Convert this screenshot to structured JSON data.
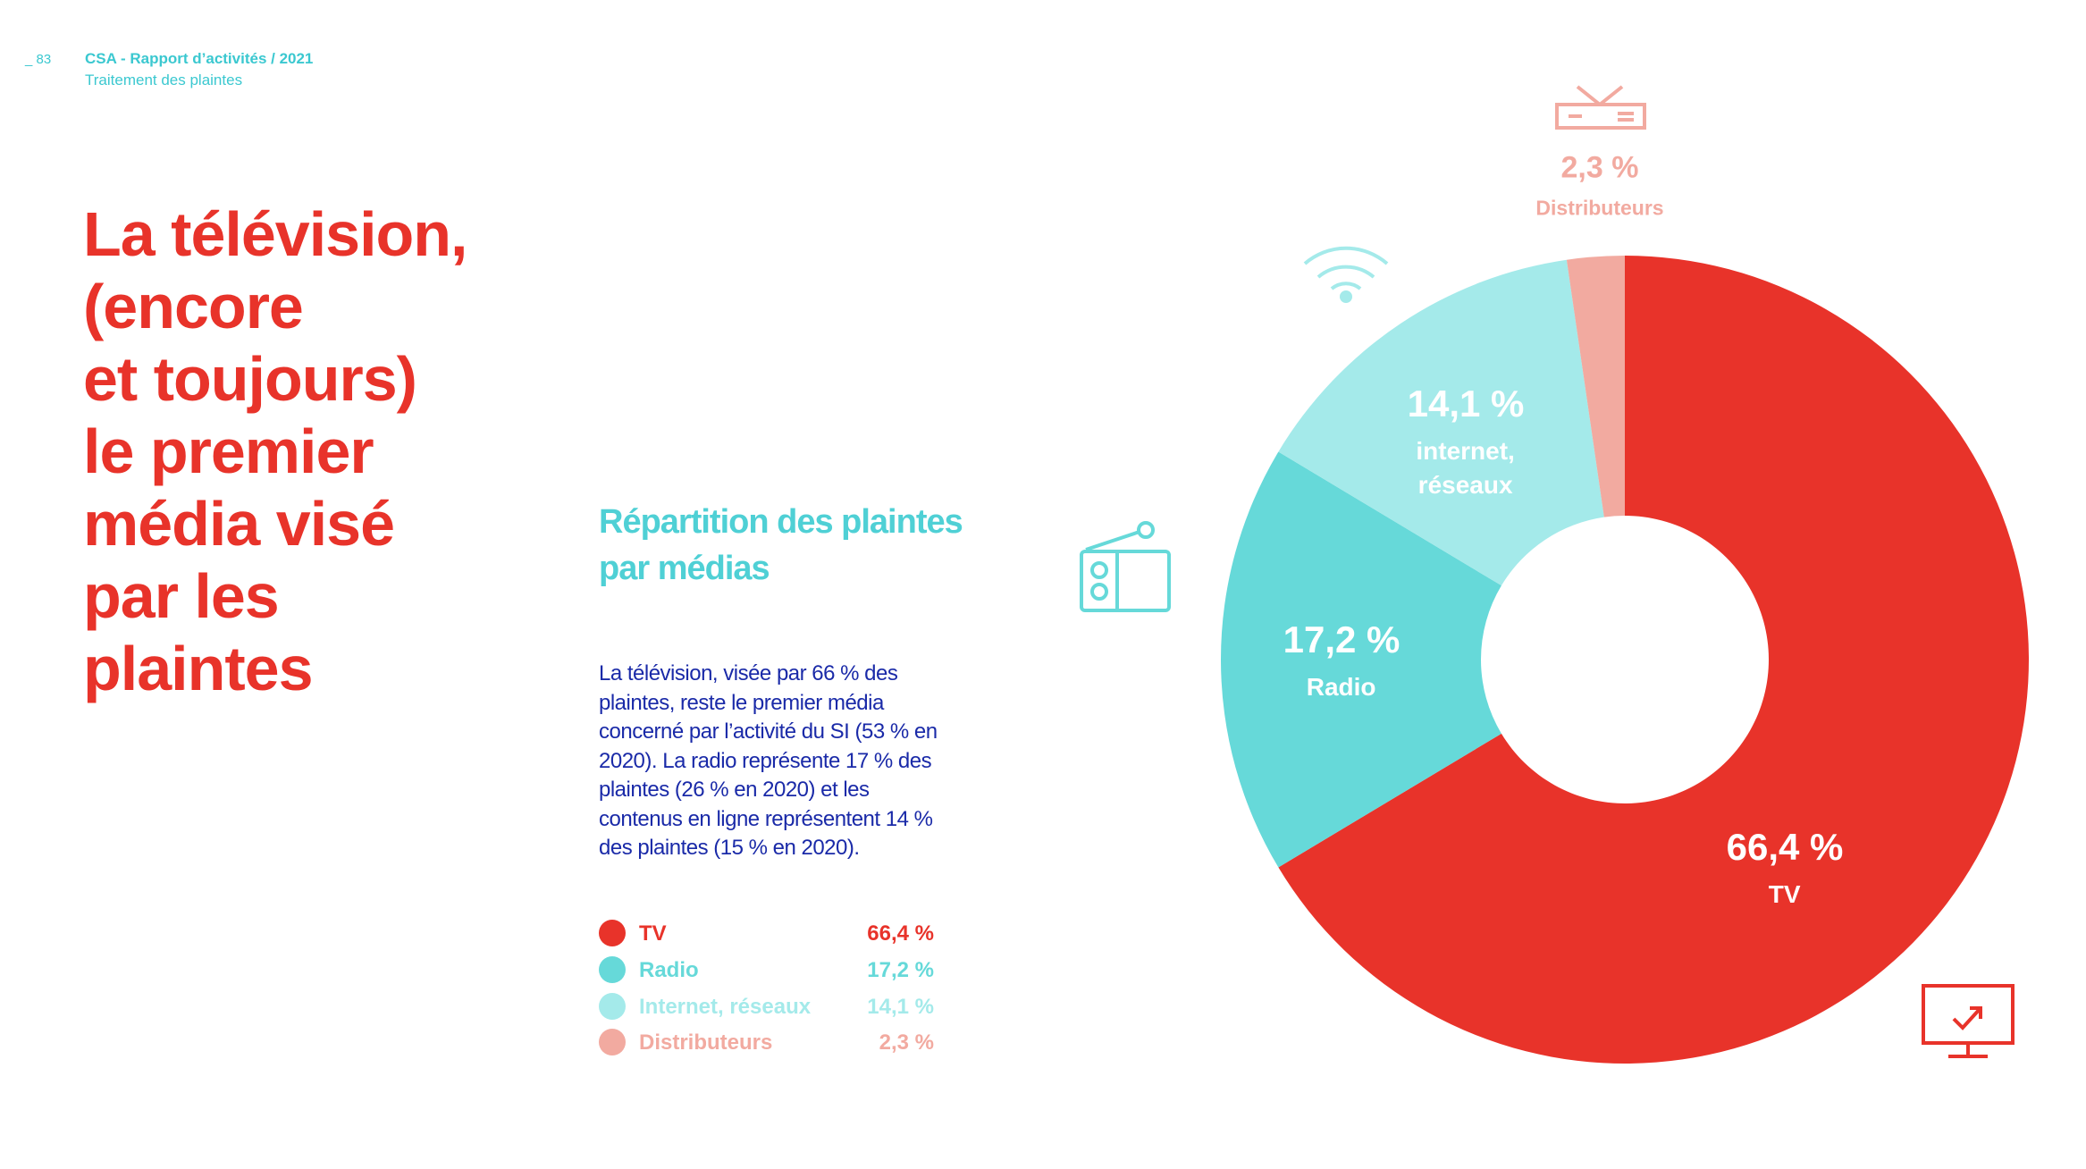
{
  "header": {
    "page": "_ 83",
    "report": "CSA - Rapport d’activités / 2021",
    "section": "Traitement des plaintes"
  },
  "headline": [
    "La télévision,",
    "(encore",
    "et toujours)",
    "le premier",
    "média visé",
    "par les",
    "plaintes"
  ],
  "body": "La télévision, visée par 66 % des plaintes, reste le premier média concerné par l’activité du SI (53 % en 2020). La radio représente 17 % des plaintes (26 % en 2020) et les contenus en ligne représentent 14 % des plaintes (15 % en 2020).",
  "chart_data": {
    "type": "donut",
    "title": "Répartition des plaintes par médias",
    "categories": [
      "TV",
      "Radio",
      "internet, réseaux",
      "Distributeurs"
    ],
    "legend_names": [
      "TV",
      "Radio",
      "Internet, réseaux",
      "Distributeurs"
    ],
    "values": [
      66.4,
      17.2,
      14.1,
      2.3
    ],
    "value_labels": [
      "66,4 %",
      "17,2 %",
      "14,1 %",
      "2,3 %"
    ],
    "colors": [
      "#e8332a",
      "#66d9d9",
      "#a4eaea",
      "#f2aaa0"
    ]
  }
}
